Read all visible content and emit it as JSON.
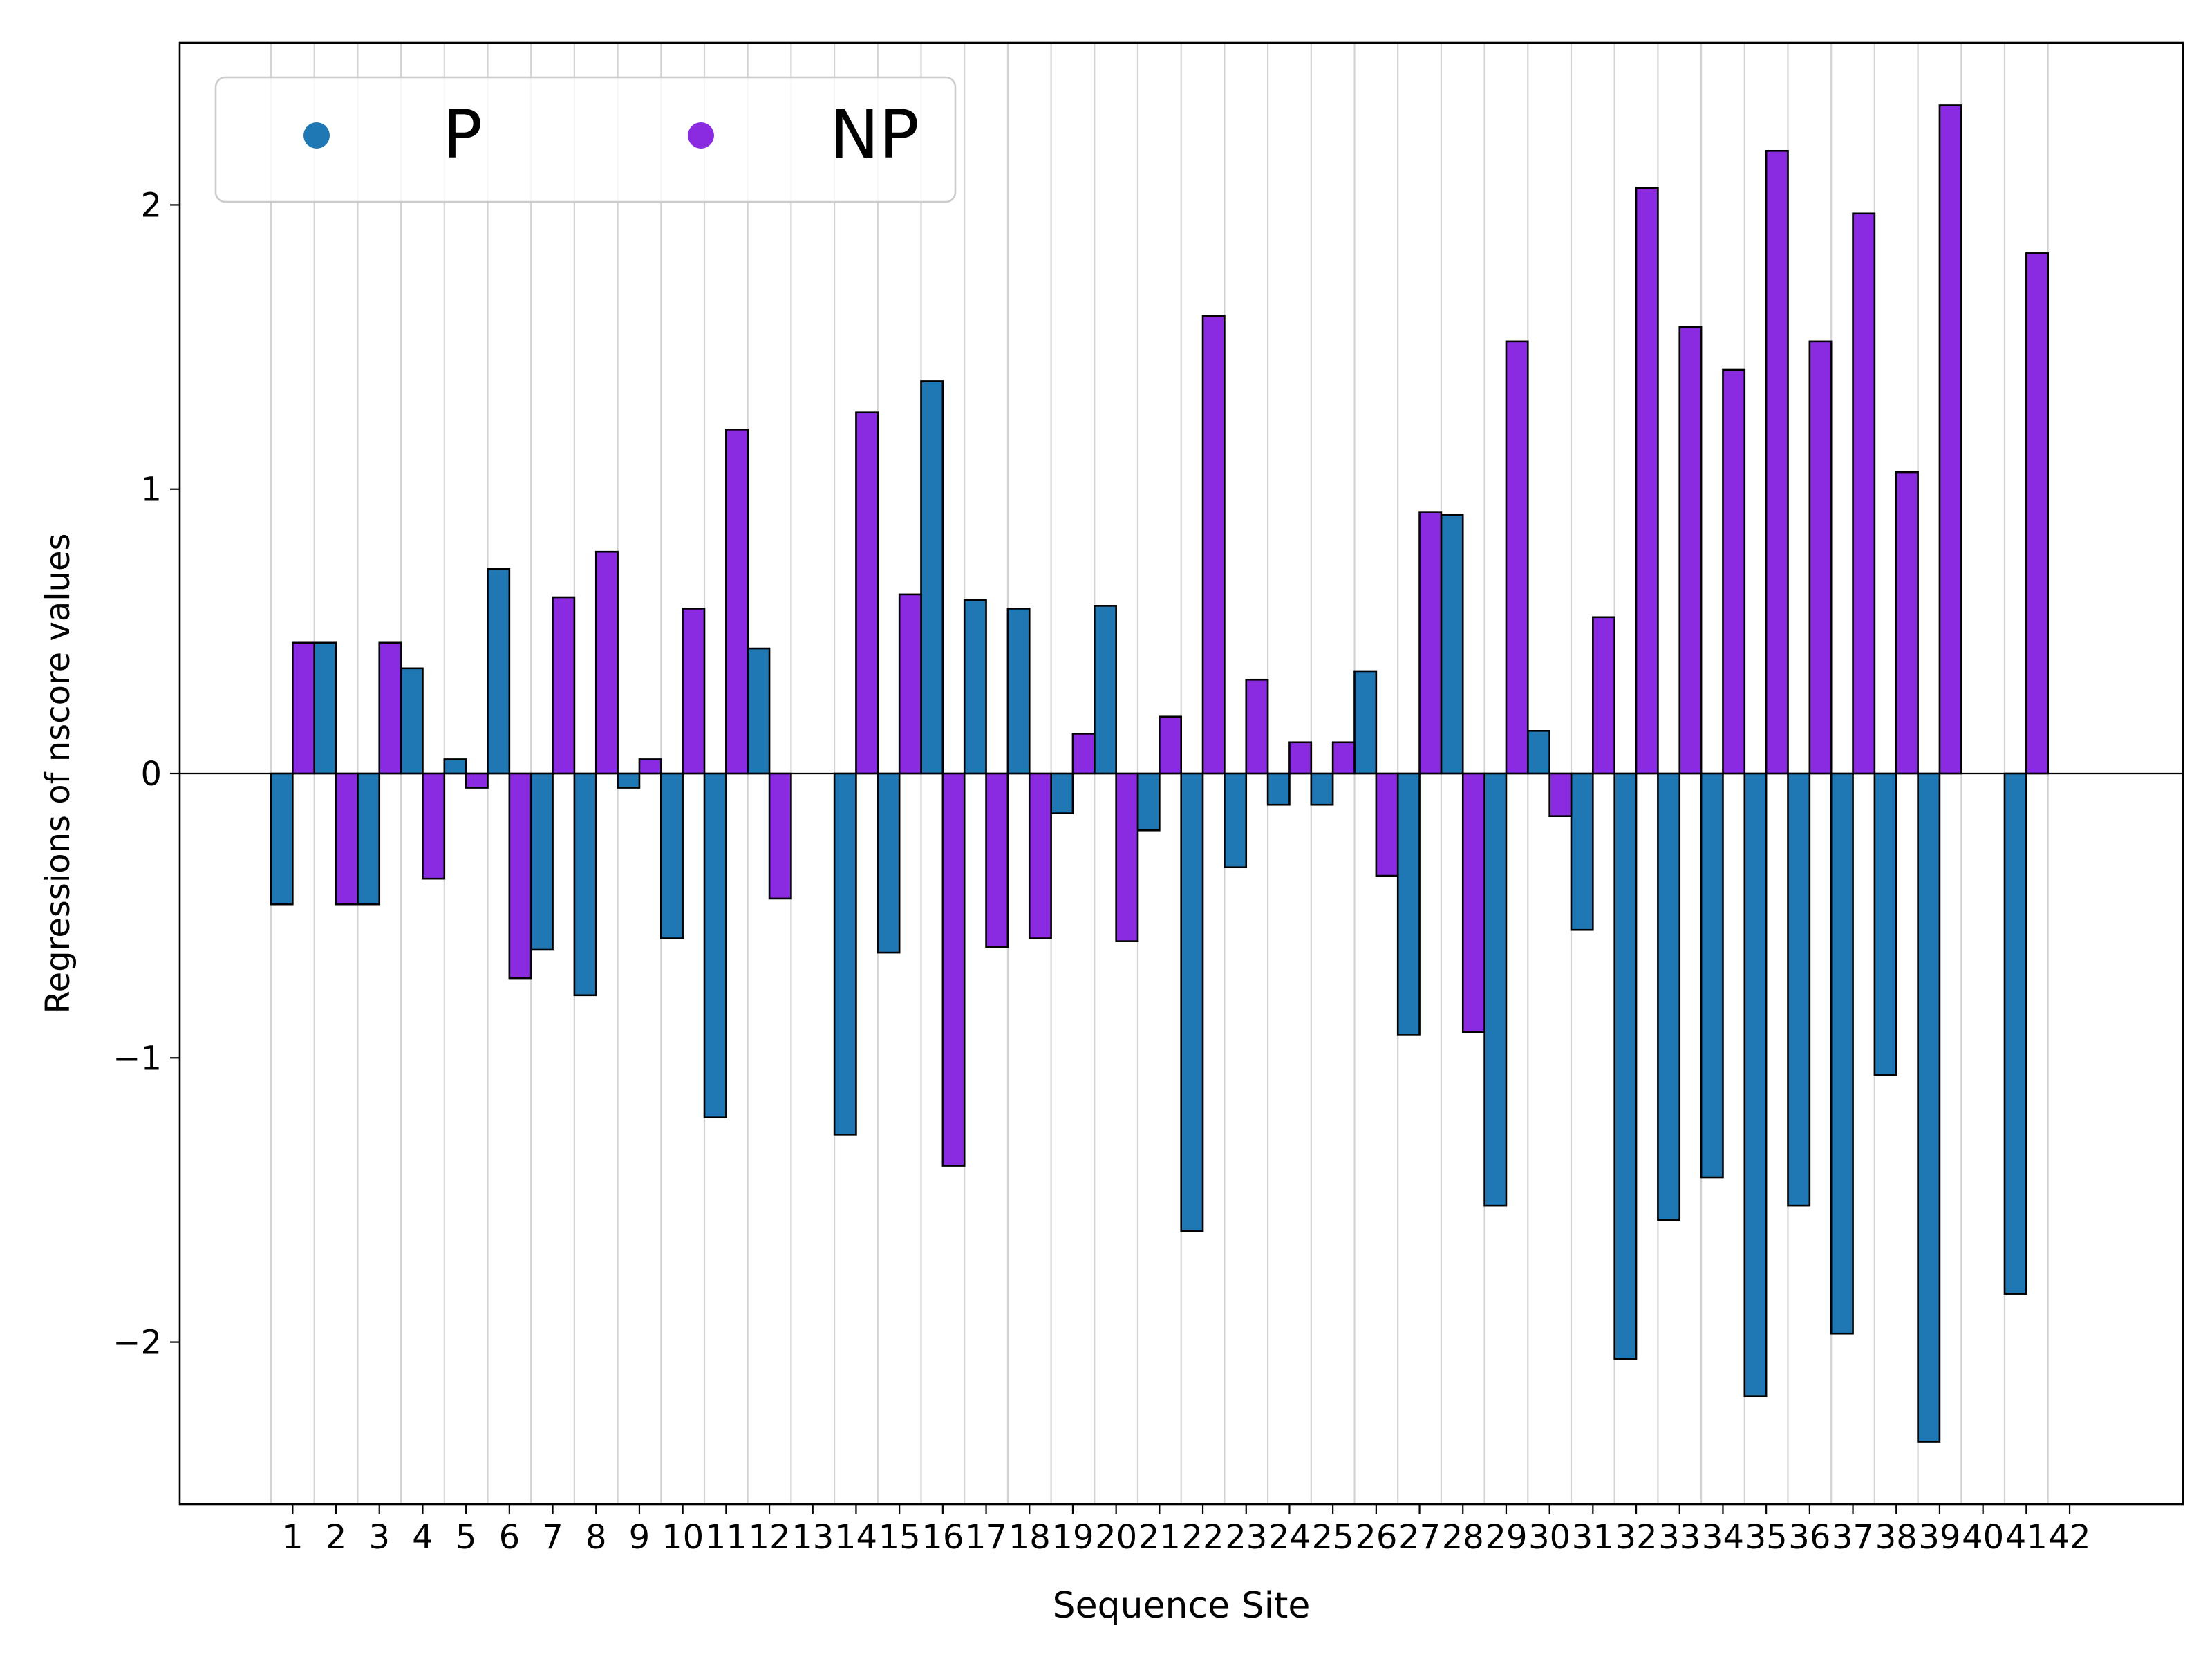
{
  "chart_data": {
    "type": "bar",
    "title": "",
    "xlabel": "Sequence Site",
    "ylabel": "Regressions of nscore values",
    "categories": [
      "1",
      "2",
      "3",
      "4",
      "5",
      "6",
      "7",
      "8",
      "9",
      "10",
      "11",
      "12",
      "13",
      "14",
      "15",
      "16",
      "17",
      "18",
      "19",
      "20",
      "21",
      "22",
      "23",
      "24",
      "25",
      "26",
      "27",
      "28",
      "29",
      "30",
      "31",
      "32",
      "33",
      "34",
      "35",
      "36",
      "37",
      "38",
      "39",
      "40",
      "41",
      "42"
    ],
    "series": [
      {
        "name": "P",
        "color": "#1f77b4",
        "values": [
          -0.46,
          0.46,
          -0.46,
          0.37,
          0.05,
          0.72,
          -0.62,
          -0.78,
          -0.05,
          -0.58,
          -1.21,
          0.44,
          0.0,
          -1.27,
          -0.63,
          1.38,
          0.61,
          0.58,
          -0.14,
          0.59,
          -0.2,
          -1.61,
          -0.33,
          -0.11,
          -0.11,
          0.36,
          -0.92,
          0.91,
          -1.52,
          0.15,
          -0.55,
          -2.06,
          -1.57,
          -1.42,
          -2.19,
          -1.52,
          -1.97,
          -1.06,
          -2.35,
          0.0,
          -1.83,
          0.0
        ]
      },
      {
        "name": "NP",
        "color": "#8a2be2",
        "values": [
          0.46,
          -0.46,
          0.46,
          -0.37,
          -0.05,
          -0.72,
          0.62,
          0.78,
          0.05,
          0.58,
          1.21,
          -0.44,
          0.0,
          1.27,
          0.63,
          -1.38,
          -0.61,
          -0.58,
          0.14,
          -0.59,
          0.2,
          1.61,
          0.33,
          0.11,
          0.11,
          -0.36,
          0.92,
          -0.91,
          1.52,
          -0.15,
          0.55,
          2.06,
          1.57,
          1.42,
          2.19,
          1.52,
          1.97,
          1.06,
          2.35,
          0.0,
          1.83,
          0.0
        ]
      }
    ],
    "yticks": [
      "2",
      "1",
      "0",
      "−1",
      "−2"
    ],
    "ylim": [
      -2.57,
      2.57
    ],
    "grid": "x",
    "legend": {
      "placement": "top-left",
      "entries": [
        "P",
        "NP"
      ]
    }
  }
}
